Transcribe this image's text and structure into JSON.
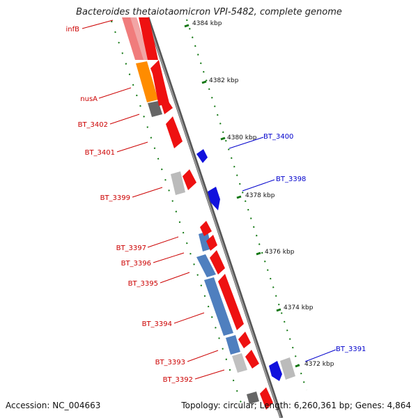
{
  "title": "Bacteroides thetaiotaomicron VPI-5482, complete genome",
  "footer": {
    "accession": "Accession: NC_004663",
    "summary": "Topology: circular; Length: 6,260,361 bp; Genes: 4,864"
  },
  "colors": {
    "forward_gene": "#ee1111",
    "reverse_gene": "#1111dd",
    "backbone": "#777777",
    "tick": "#117711",
    "label_red": "#cc0000",
    "label_blue": "#0000cc"
  },
  "ticks": [
    "4384 kbp",
    "4382 kbp",
    "4380 kbp",
    "4378 kbp",
    "4376 kbp",
    "4374 kbp",
    "4372 kbp"
  ],
  "left_labels": [
    "infB",
    "nusA",
    "BT_3402",
    "BT_3401",
    "BT_3399",
    "BT_3397",
    "BT_3396",
    "BT_3395",
    "BT_3394",
    "BT_3393",
    "BT_3392"
  ],
  "right_labels": [
    "BT_3400",
    "BT_3398",
    "BT_3391"
  ]
}
